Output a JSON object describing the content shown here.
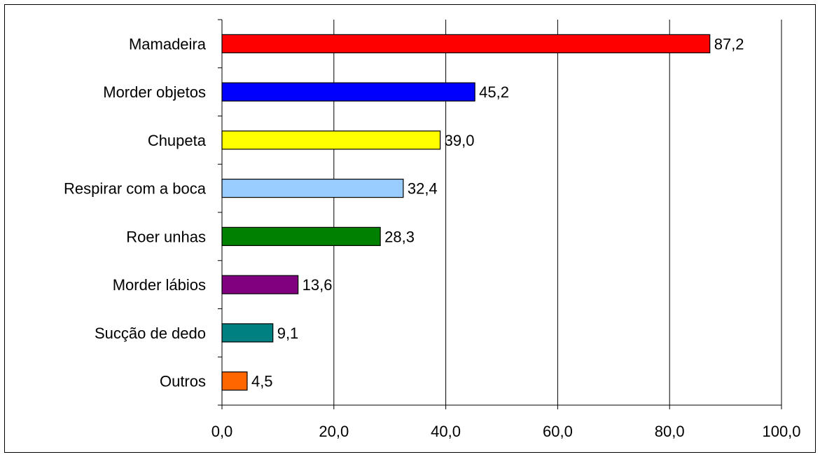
{
  "chart_data": {
    "type": "bar",
    "orientation": "horizontal",
    "title": "",
    "xlabel": "",
    "ylabel": "",
    "categories": [
      "Mamadeira",
      "Morder objetos",
      "Chupeta",
      "Respirar com a boca",
      "Roer unhas",
      "Morder lábios",
      "Sucção de dedo",
      "Outros"
    ],
    "values": [
      87.2,
      45.2,
      39.0,
      32.4,
      28.3,
      13.6,
      9.1,
      4.5
    ],
    "value_labels": [
      "87,2",
      "45,2",
      "39,0",
      "32,4",
      "28,3",
      "13,6",
      "9,1",
      "4,5"
    ],
    "colors": [
      "#ff0000",
      "#0000ff",
      "#ffff00",
      "#99ccff",
      "#008000",
      "#800080",
      "#008080",
      "#ff6600"
    ],
    "xlim": [
      0,
      100
    ],
    "x_ticks": [
      0,
      20,
      40,
      60,
      80,
      100
    ],
    "x_tick_labels": [
      "0,0",
      "20,0",
      "40,0",
      "60,0",
      "80,0",
      "100,0"
    ],
    "grid": "vertical",
    "legend": "none"
  }
}
